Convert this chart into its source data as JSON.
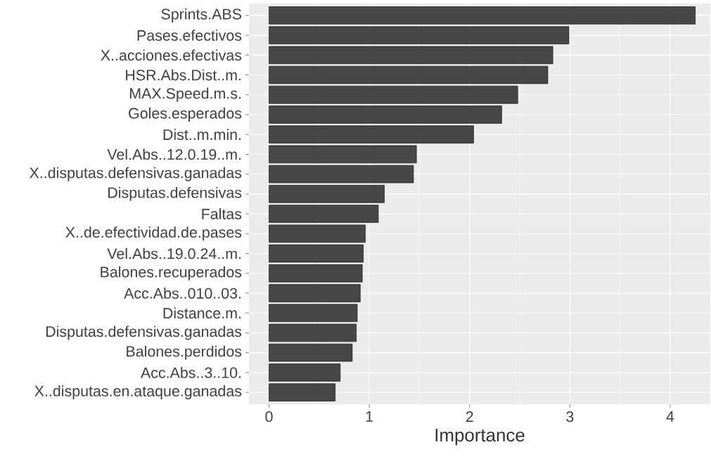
{
  "chart_data": {
    "type": "bar",
    "orientation": "horizontal",
    "xlabel": "Importance",
    "categories": [
      "Sprints.ABS",
      "Pases.efectivos",
      "X..acciones.efectivas",
      "HSR.Abs.Dist..m.",
      "MAX.Speed.m.s.",
      "Goles.esperados",
      "Dist..m.min.",
      "Vel.Abs..12.0.19..m.",
      "X..disputas.defensivas.ganadas",
      "Disputas.defensivas",
      "Faltas",
      "X..de.efectividad.de.pases",
      "Vel.Abs..19.0.24..m.",
      "Balones.recuperados",
      "Acc.Abs..010..03.",
      "Distance.m.",
      "Disputas.defensivas.ganadas",
      "Balones.perdidos",
      "Acc.Abs..3..10.",
      "X..disputas.en.ataque.ganadas"
    ],
    "values": [
      4.25,
      2.99,
      2.83,
      2.78,
      2.48,
      2.32,
      2.04,
      1.47,
      1.44,
      1.15,
      1.09,
      0.96,
      0.94,
      0.93,
      0.91,
      0.88,
      0.87,
      0.83,
      0.71,
      0.66
    ],
    "color": "#474747",
    "xlim": [
      -0.2,
      4.4
    ],
    "xticks": [
      0,
      1,
      2,
      3,
      4
    ],
    "grid": true
  }
}
